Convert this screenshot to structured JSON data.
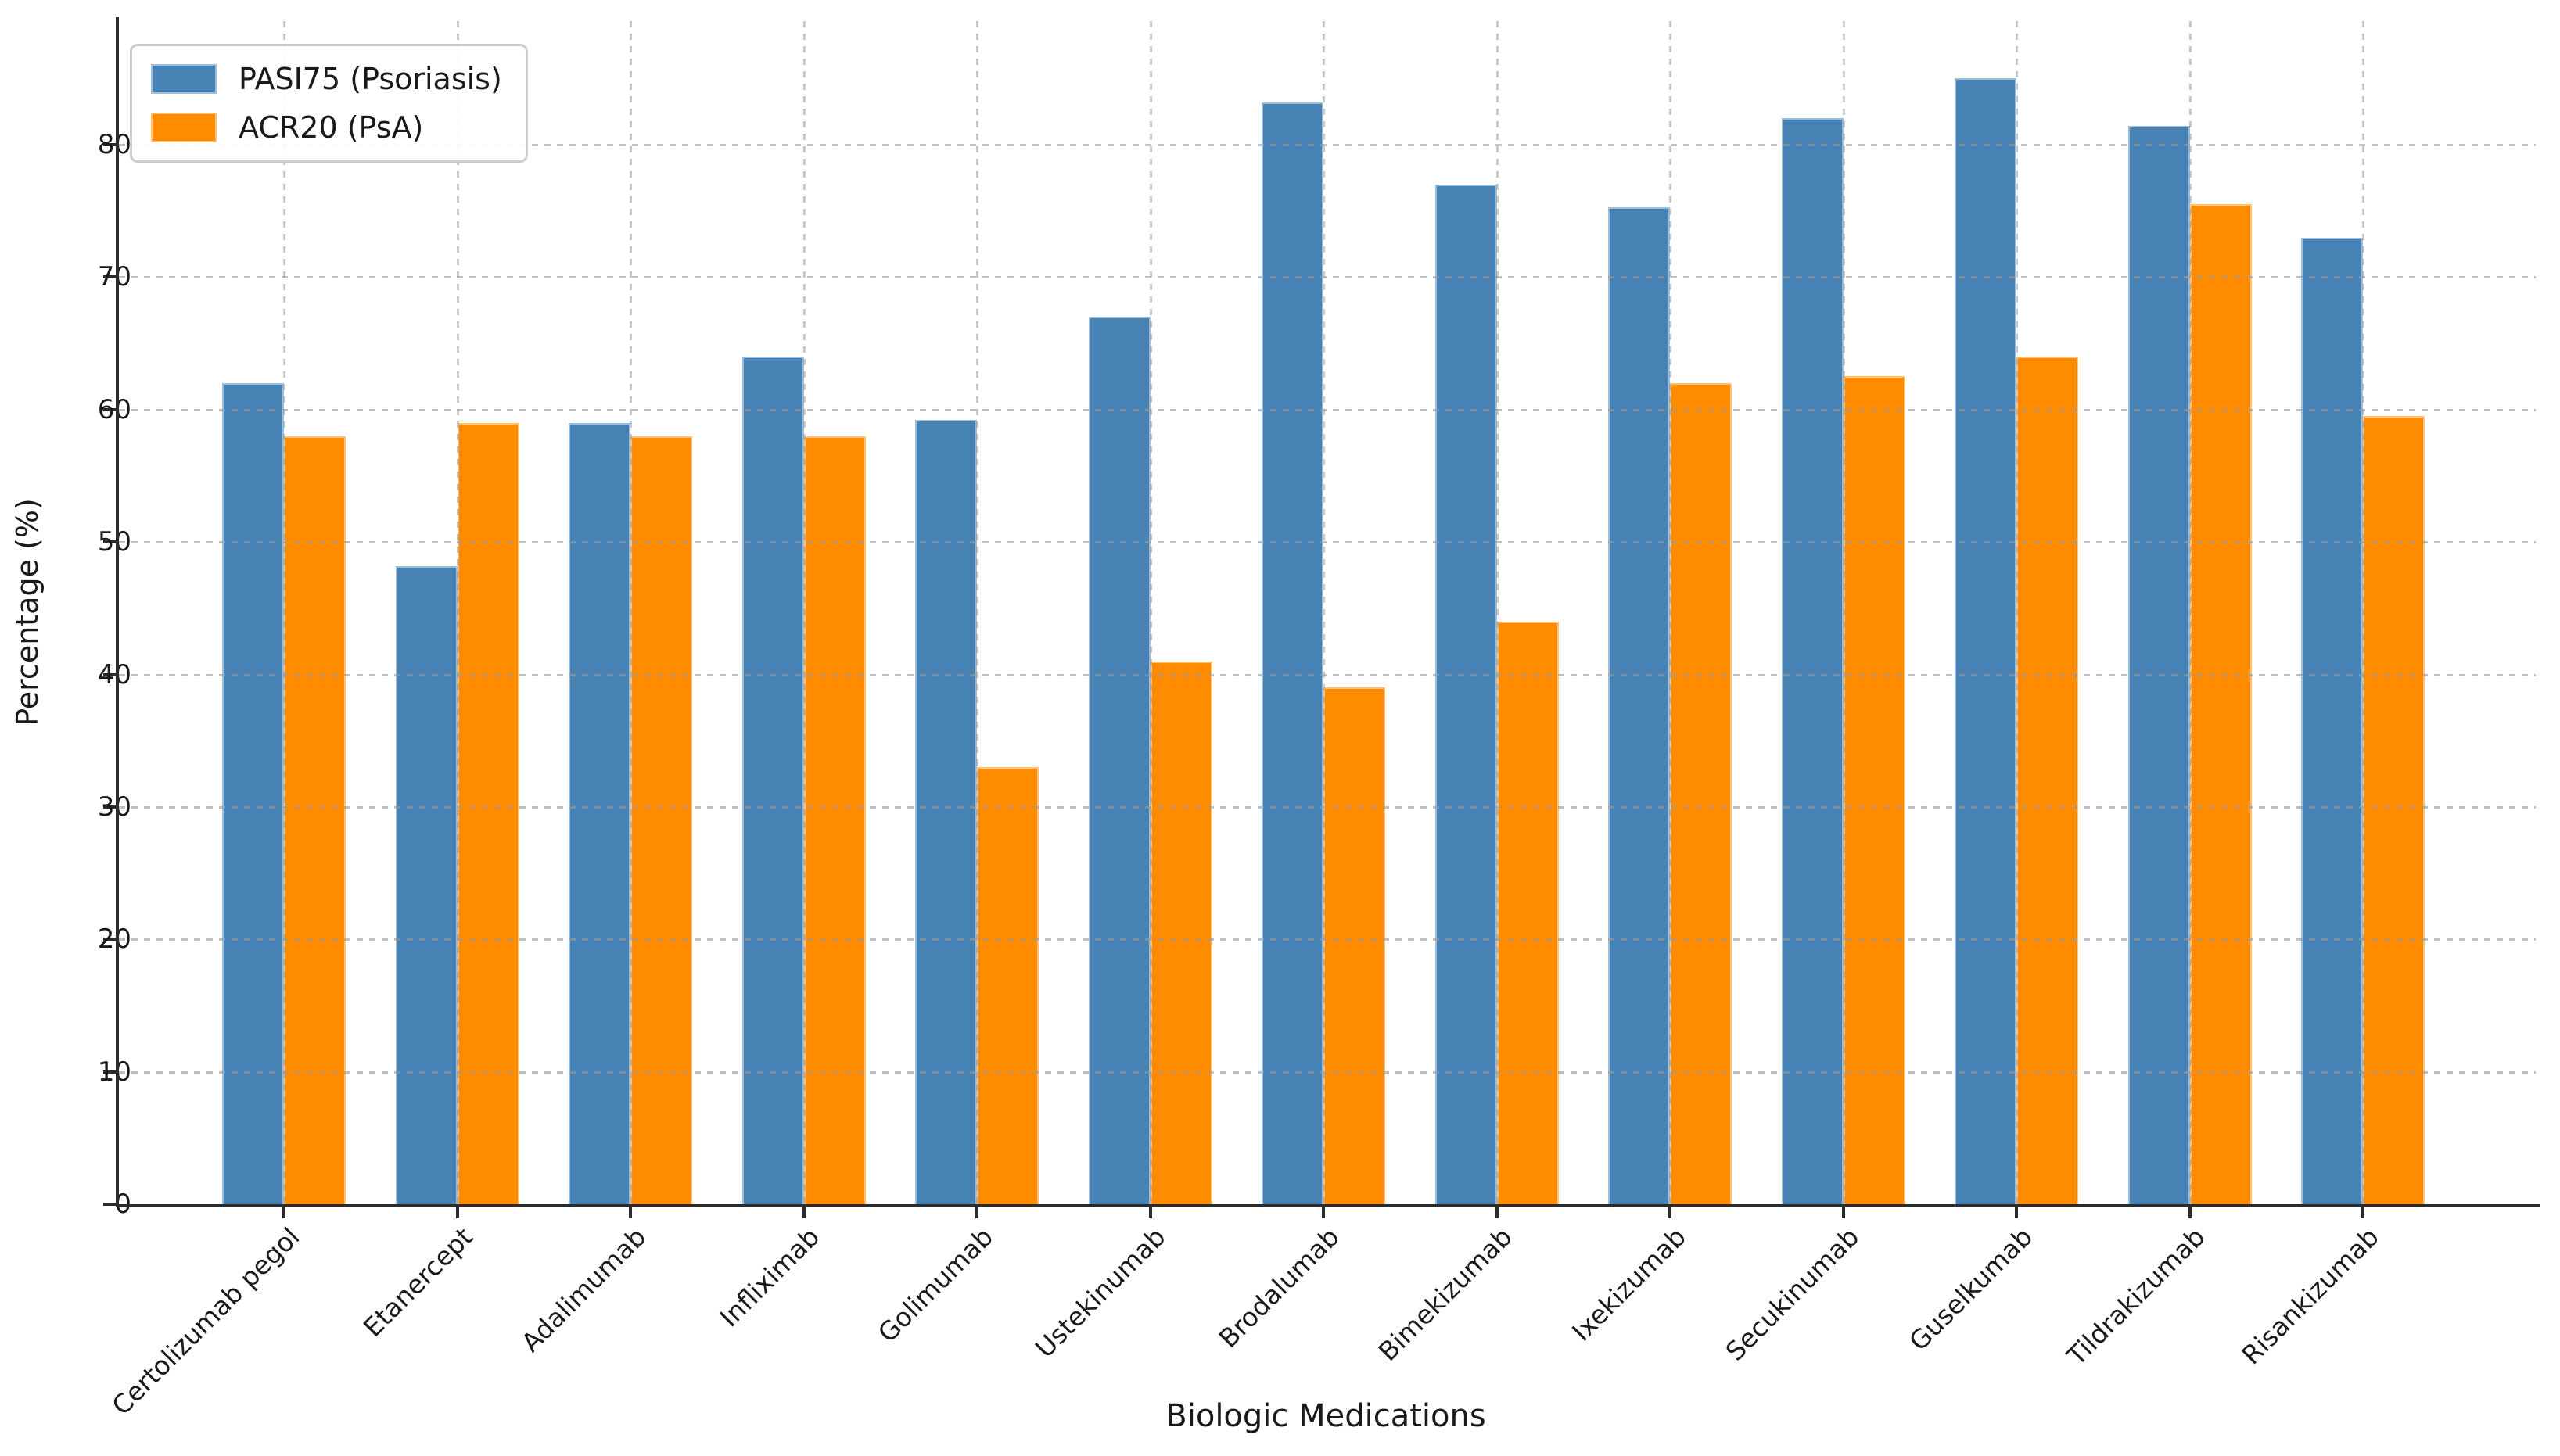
{
  "chart_data": {
    "type": "bar",
    "title": "",
    "xlabel": "Biologic Medications",
    "ylabel": "Percentage (%)",
    "categories": [
      "Certolizumab pegol",
      "Etanercept",
      "Adalimumab",
      "Infliximab",
      "Golimumab",
      "Ustekinumab",
      "Brodalumab",
      "Bimekizumab",
      "Ixekizumab",
      "Secukinumab",
      "Guselkumab",
      "Tildrakizumab",
      "Risankizumab"
    ],
    "series": [
      {
        "name": "PASI75 (Psoriasis)",
        "color": "#4682b4",
        "edge_color": "#9dbedb",
        "values": [
          62,
          48.2,
          59,
          64,
          59.2,
          67,
          83.2,
          77,
          75.3,
          82,
          85,
          81.4,
          73
        ]
      },
      {
        "name": "ACR20 (PsA)",
        "color": "#ff8c00",
        "edge_color": "#ffc077",
        "values": [
          58,
          59,
          58,
          58,
          33,
          41,
          39,
          44,
          62,
          62.5,
          64,
          75.5,
          59.5
        ]
      }
    ],
    "yticks": [
      0,
      10,
      20,
      30,
      40,
      50,
      60,
      70,
      80
    ],
    "ylim": [
      0,
      89
    ],
    "grid": "dashed gray, horizontal and vertical, drawn over bars",
    "legend_position": "upper left",
    "text_color": "#1a1a1a",
    "grid_color": "#9a9a9a",
    "spine_color": "#2b2b2b"
  }
}
